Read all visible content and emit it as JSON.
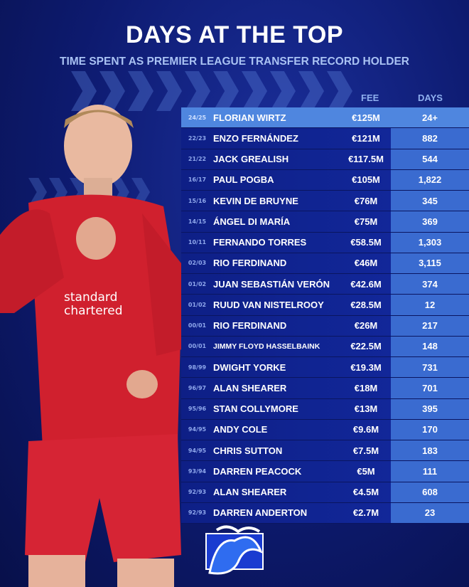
{
  "title": "DAYS AT THE TOP",
  "subtitle": "TIME SPENT AS PREMIER LEAGUE TRANSFER RECORD HOLDER",
  "headers": {
    "fee": "FEE",
    "days": "DAYS"
  },
  "colors": {
    "background": "#0d1a6e",
    "highlight_row": "#4f86df",
    "days_column": "#3a6bd0",
    "kit_red": "#d0202e"
  },
  "player_shirt": {
    "sponsor": "standard chartered"
  },
  "rows": [
    {
      "season": "24/25",
      "name": "FLORIAN WIRTZ",
      "fee": "€125M",
      "days": "24+"
    },
    {
      "season": "22/23",
      "name": "ENZO FERNÁNDEZ",
      "fee": "€121M",
      "days": "882"
    },
    {
      "season": "21/22",
      "name": "JACK GREALISH",
      "fee": "€117.5M",
      "days": "544"
    },
    {
      "season": "16/17",
      "name": "PAUL POGBA",
      "fee": "€105M",
      "days": "1,822"
    },
    {
      "season": "15/16",
      "name": "KEVIN DE BRUYNE",
      "fee": "€76M",
      "days": "345"
    },
    {
      "season": "14/15",
      "name": "ÁNGEL DI MARÍA",
      "fee": "€75M",
      "days": "369"
    },
    {
      "season": "10/11",
      "name": "FERNANDO TORRES",
      "fee": "€58.5M",
      "days": "1,303"
    },
    {
      "season": "02/03",
      "name": "RIO FERDINAND",
      "fee": "€46M",
      "days": "3,115"
    },
    {
      "season": "01/02",
      "name": "JUAN SEBASTIÁN VERÓN",
      "fee": "€42.6M",
      "days": "374"
    },
    {
      "season": "01/02",
      "name": "RUUD VAN NISTELROOY",
      "fee": "€28.5M",
      "days": "12"
    },
    {
      "season": "00/01",
      "name": "RIO FERDINAND",
      "fee": "€26M",
      "days": "217"
    },
    {
      "season": "00/01",
      "name": "JIMMY FLOYD HASSELBAINK",
      "fee": "€22.5M",
      "days": "148"
    },
    {
      "season": "98/99",
      "name": "DWIGHT YORKE",
      "fee": "€19.3M",
      "days": "731"
    },
    {
      "season": "96/97",
      "name": "ALAN SHEARER",
      "fee": "€18M",
      "days": "701"
    },
    {
      "season": "95/96",
      "name": "STAN COLLYMORE",
      "fee": "€13M",
      "days": "395"
    },
    {
      "season": "94/95",
      "name": "ANDY COLE",
      "fee": "€9.6M",
      "days": "170"
    },
    {
      "season": "94/95",
      "name": "CHRIS SUTTON",
      "fee": "€7.5M",
      "days": "183"
    },
    {
      "season": "93/94",
      "name": "DARREN PEACOCK",
      "fee": "€5M",
      "days": "111"
    },
    {
      "season": "92/93",
      "name": "ALAN SHEARER",
      "fee": "€4.5M",
      "days": "608"
    },
    {
      "season": "92/93",
      "name": "DARREN ANDERTON",
      "fee": "€2.7M",
      "days": "23"
    }
  ]
}
